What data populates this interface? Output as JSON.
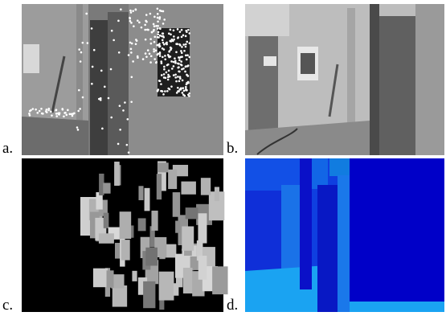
{
  "panels": [
    {
      "label": "a."
    },
    {
      "label": "b."
    },
    {
      "label": "c."
    },
    {
      "label": "d."
    }
  ]
}
